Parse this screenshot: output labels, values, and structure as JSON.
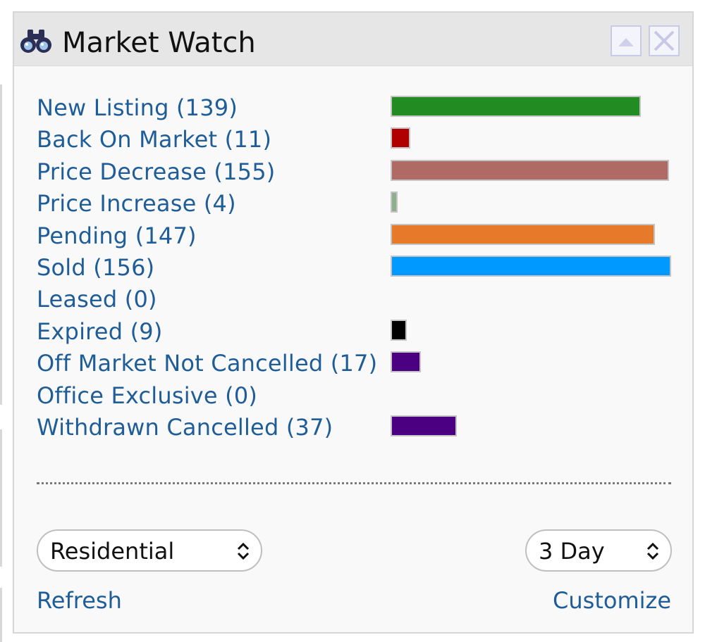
{
  "widget": {
    "title": "Market Watch",
    "icon": "binoculars-icon",
    "buttons": {
      "collapse_icon": "triangle-up-icon",
      "close_icon": "close-x-icon"
    }
  },
  "chart_data": {
    "type": "bar",
    "categories": [
      "New Listing (139)",
      "Back On Market (11)",
      "Price Decrease (155)",
      "Price Increase (4)",
      "Pending (147)",
      "Sold (156)",
      "Leased (0)",
      "Expired (9)",
      "Off Market Not Cancelled (17)",
      "Office Exclusive (0)",
      "Withdrawn Cancelled (37)"
    ],
    "values": [
      139,
      11,
      155,
      4,
      147,
      156,
      0,
      9,
      17,
      0,
      37
    ],
    "colors": [
      "#228b22",
      "#b00000",
      "#b06a66",
      "#8fb08f",
      "#e6792a",
      "#0099ff",
      "#888888",
      "#000000",
      "#4b0082",
      "#888888",
      "#4b0082"
    ],
    "max": 156
  },
  "filters": {
    "property_type": "Residential",
    "period": "3 Day"
  },
  "links": {
    "refresh": "Refresh",
    "customize": "Customize"
  },
  "theme": {
    "link_color": "#1f5d98",
    "header_bg": "#e6e6e6"
  }
}
